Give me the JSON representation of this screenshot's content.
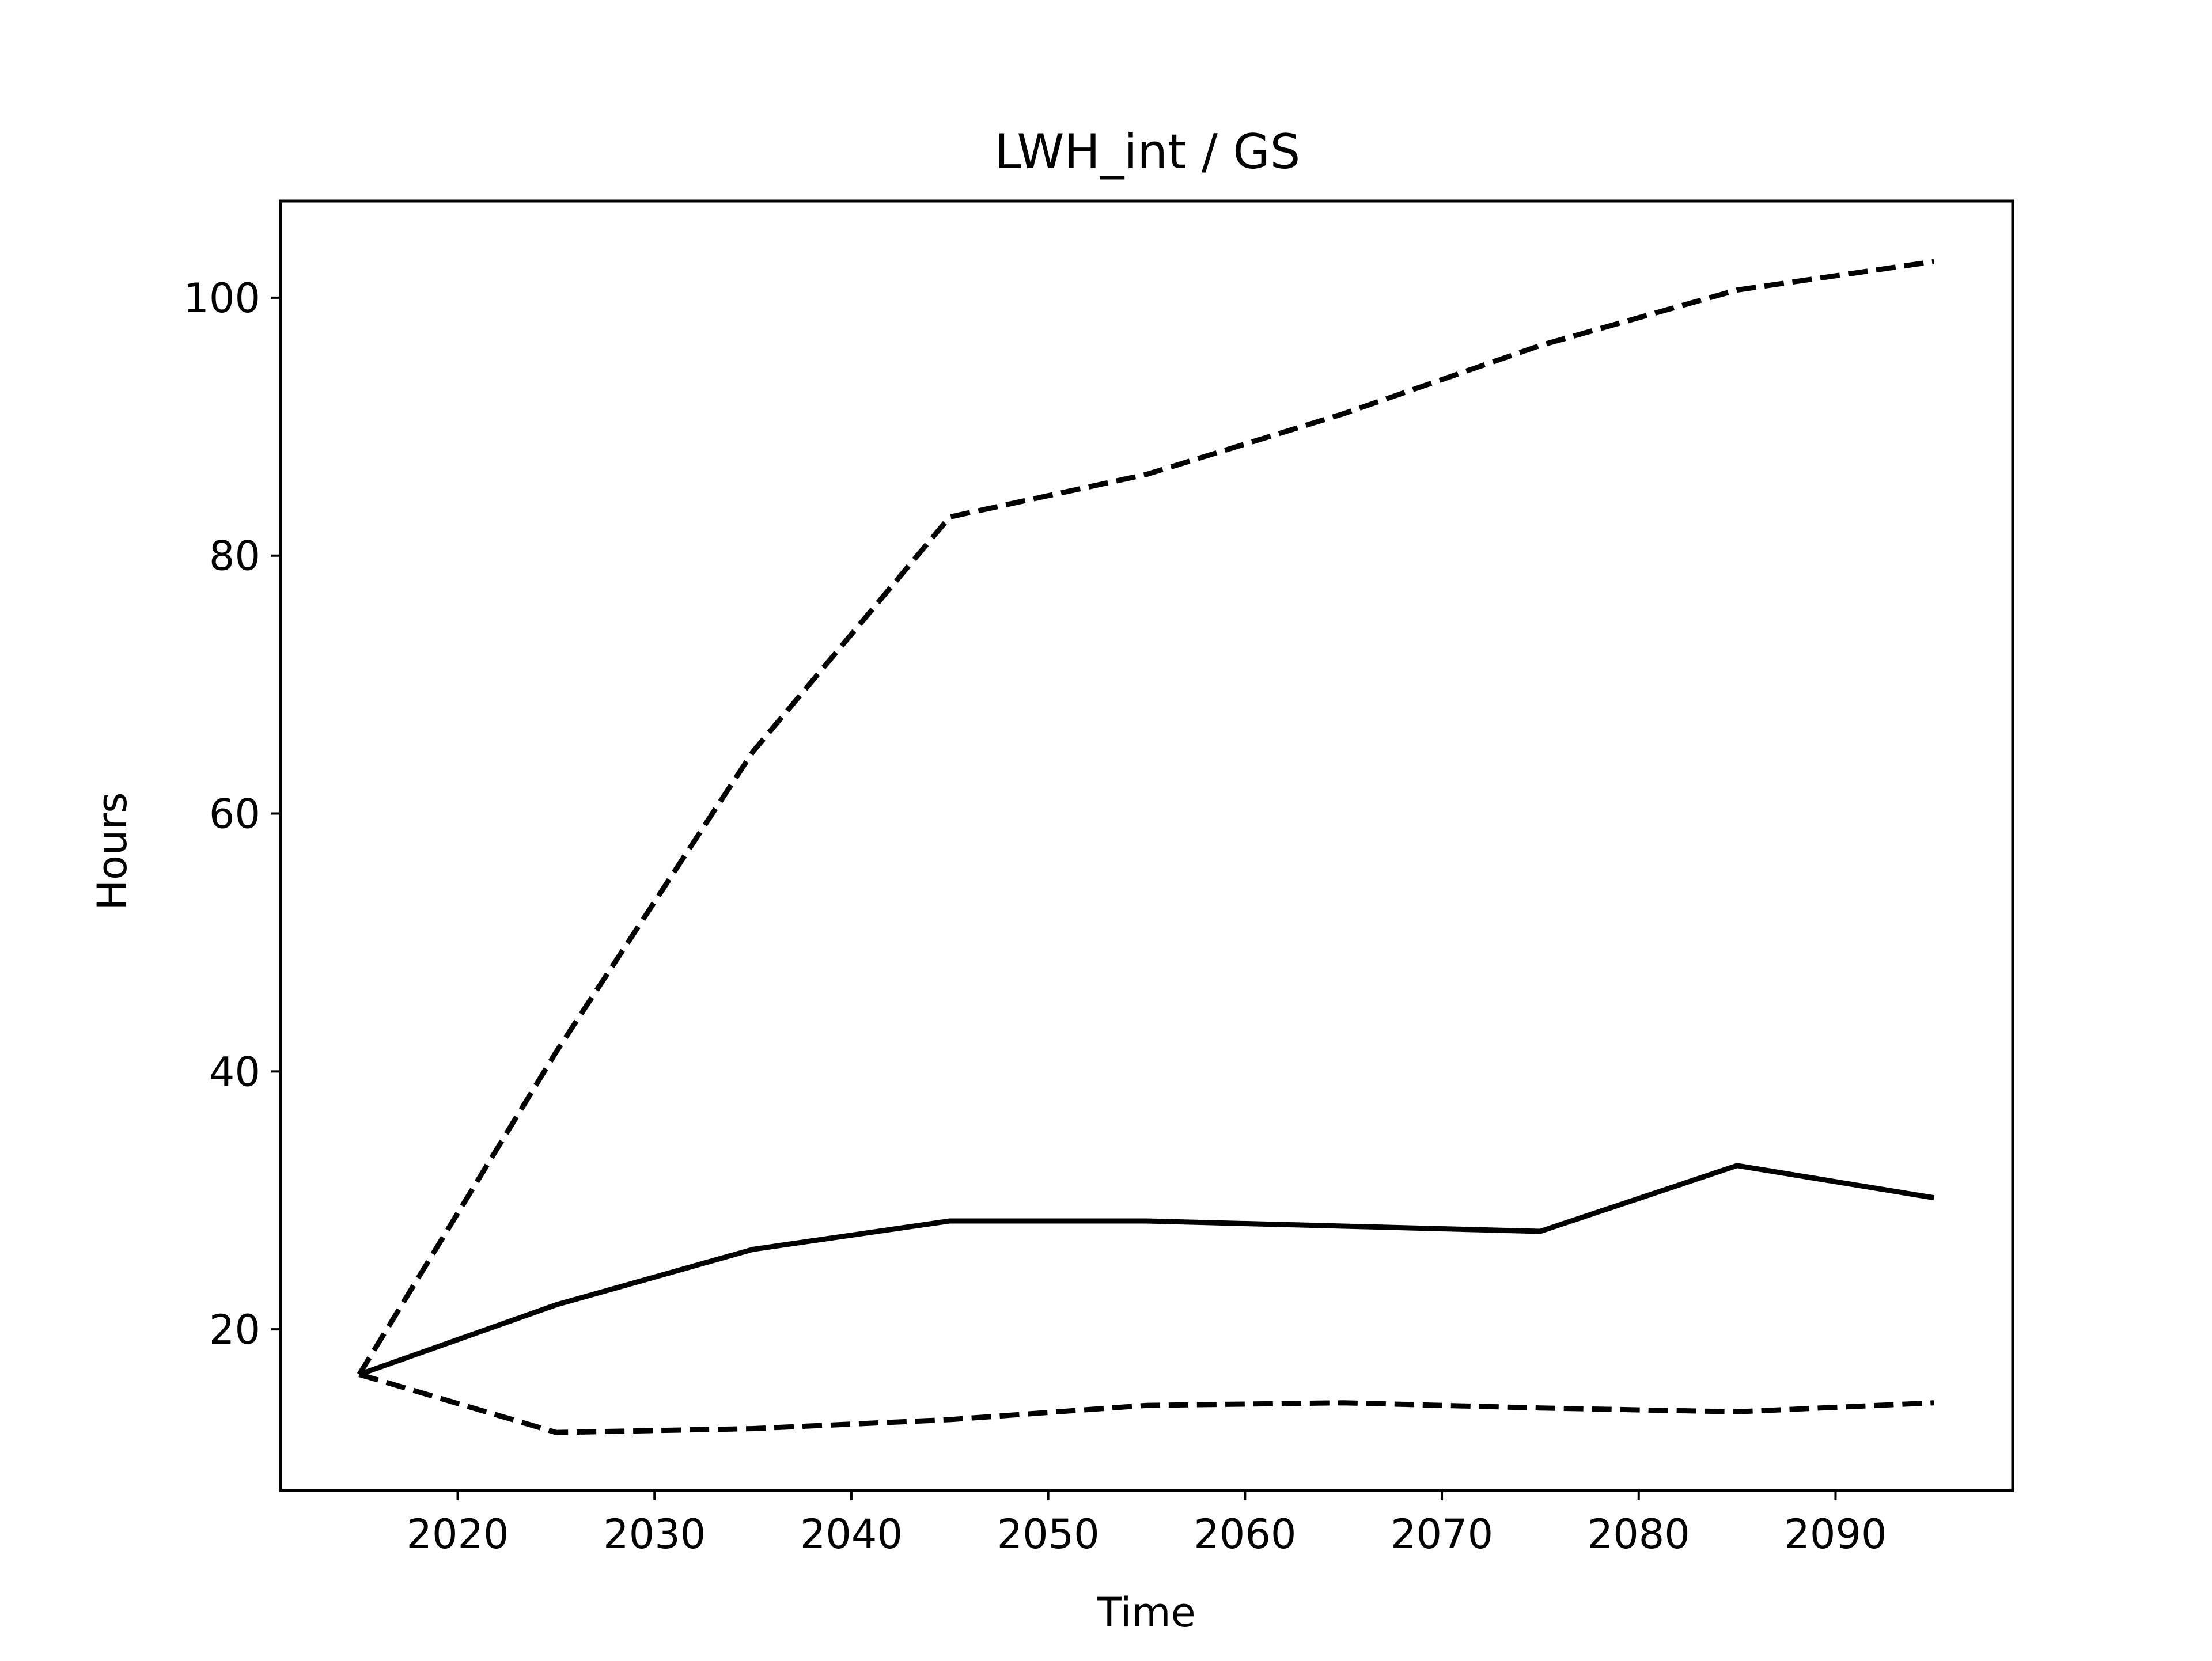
{
  "chart_data": {
    "type": "line",
    "title": "LWH_int / GS",
    "xlabel": "Time",
    "ylabel": "Hours",
    "xlim": [
      2011,
      2099
    ],
    "ylim": [
      7.5,
      107.5
    ],
    "xticks": [
      2020,
      2030,
      2040,
      2050,
      2060,
      2070,
      2080,
      2090
    ],
    "yticks": [
      20,
      40,
      60,
      80,
      100
    ],
    "grid": false,
    "legend": "none",
    "colors": {
      "line": "#000000",
      "background": "#ffffff",
      "frame": "#000000"
    },
    "series": [
      {
        "style": "solid",
        "x": [
          2015,
          2025,
          2035,
          2045,
          2055,
          2065,
          2075,
          2085,
          2095
        ],
        "y": [
          16.5,
          21.9,
          26.2,
          28.4,
          28.4,
          28.0,
          27.6,
          32.7,
          30.2
        ]
      },
      {
        "style": "dashed",
        "x": [
          2015,
          2025,
          2035,
          2045,
          2055,
          2065,
          2075,
          2085,
          2095
        ],
        "y": [
          16.5,
          41.5,
          64.8,
          83.0,
          86.3,
          91.0,
          96.3,
          100.6,
          102.8
        ]
      },
      {
        "style": "dashed",
        "x": [
          2015,
          2025,
          2035,
          2045,
          2055,
          2065,
          2075,
          2085,
          2095
        ],
        "y": [
          16.5,
          12.0,
          12.3,
          13.0,
          14.1,
          14.3,
          13.9,
          13.6,
          14.3
        ]
      }
    ]
  }
}
